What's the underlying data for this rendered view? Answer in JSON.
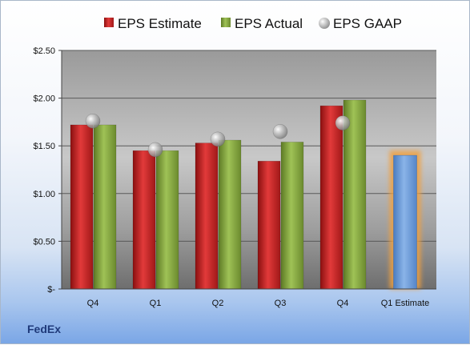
{
  "brand": "FedEx",
  "colors": {
    "estimate": "#cc2222",
    "actual": "#88aa44",
    "gaap": "#a8a8a8",
    "forecast": "#6f9fd8",
    "forecast_glow": "#f0a040"
  },
  "chart_data": {
    "type": "bar",
    "categories": [
      "Q4",
      "Q1",
      "Q2",
      "Q3",
      "Q4",
      "Q1 Estimate"
    ],
    "series": [
      {
        "name": "EPS Estimate",
        "kind": "bar",
        "values": [
          1.72,
          1.45,
          1.53,
          1.34,
          1.92,
          null
        ]
      },
      {
        "name": "EPS Actual",
        "kind": "bar",
        "values": [
          1.72,
          1.45,
          1.56,
          1.54,
          1.98,
          null
        ]
      },
      {
        "name": "EPS GAAP",
        "kind": "marker",
        "values": [
          1.76,
          1.46,
          1.57,
          1.65,
          1.74,
          null
        ]
      }
    ],
    "forecast": {
      "category": "Q1 Estimate",
      "value": 1.4
    },
    "ylim": [
      0,
      2.5
    ],
    "yticks": [
      {
        "value": 2.5,
        "label": "$2.50"
      },
      {
        "value": 2.0,
        "label": "$2.00"
      },
      {
        "value": 1.5,
        "label": "$1.50"
      },
      {
        "value": 1.0,
        "label": "$1.00"
      },
      {
        "value": 0.5,
        "label": "$0.50"
      },
      {
        "value": 0,
        "label": "$-"
      }
    ],
    "legend_position": "top",
    "grid": true
  }
}
